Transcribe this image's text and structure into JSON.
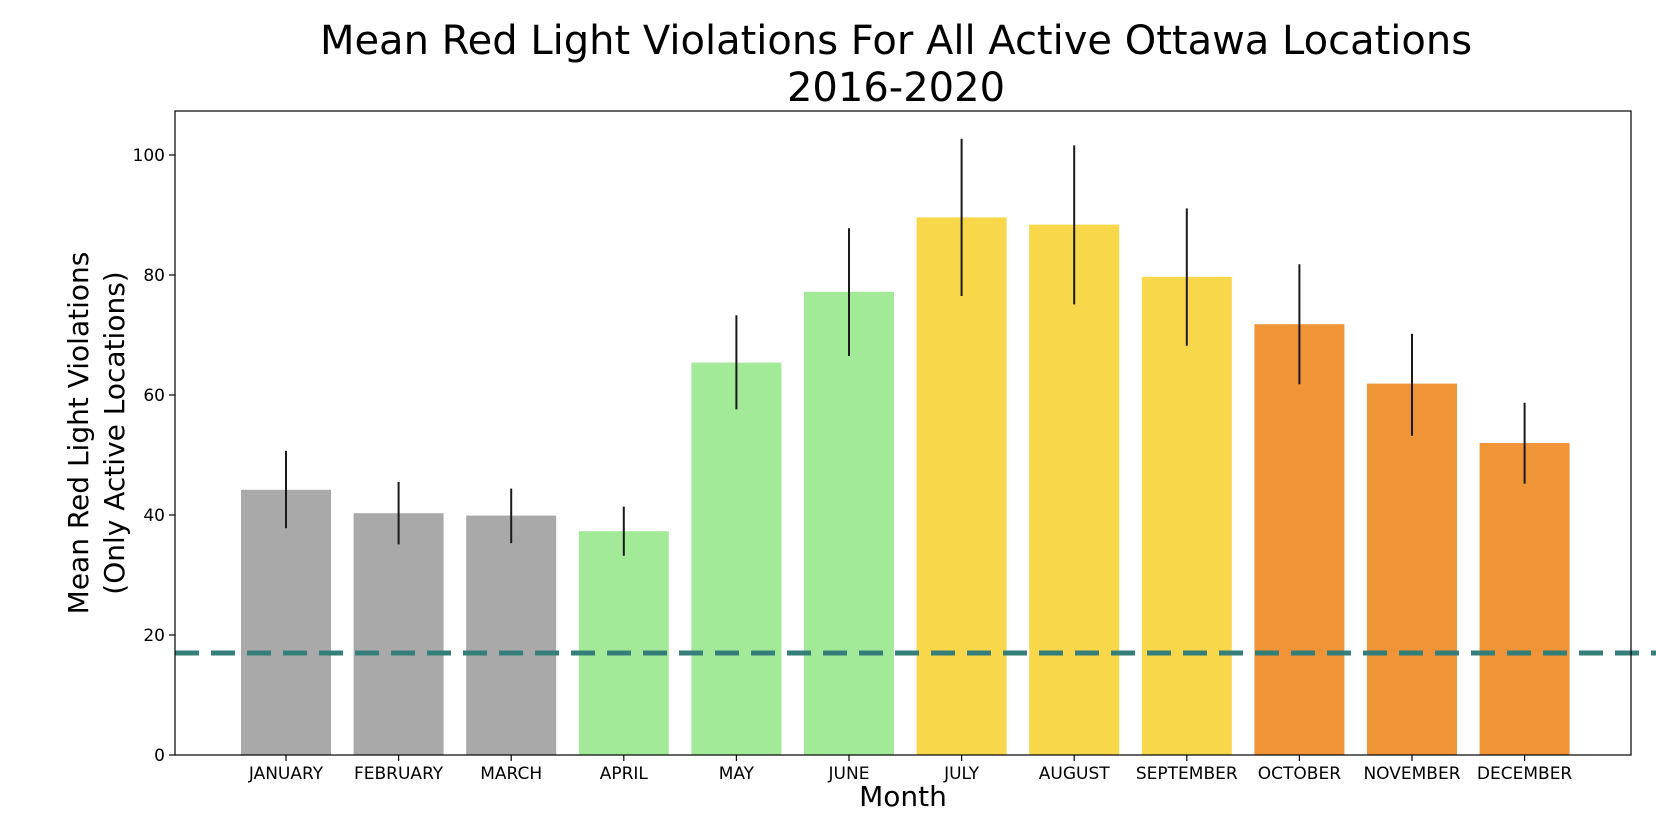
{
  "chart_data": {
    "type": "bar",
    "title": "Mean Red Light Violations For All Active Ottawa Locations",
    "subtitle": "2016-2020",
    "xlabel": "Month",
    "ylabel": "Mean Red Light Violations",
    "ylabel_line2": "(Only Active Locations)",
    "categories": [
      "JANUARY",
      "FEBRUARY",
      "MARCH",
      "APRIL",
      "MAY",
      "JUNE",
      "JULY",
      "AUGUST",
      "SEPTEMBER",
      "OCTOBER",
      "NOVEMBER",
      "DECEMBER"
    ],
    "values": [
      44.2,
      40.3,
      39.9,
      37.3,
      65.4,
      77.2,
      89.6,
      88.4,
      79.7,
      71.8,
      61.9,
      52.0
    ],
    "error_low": [
      37.8,
      35.1,
      35.3,
      33.2,
      57.6,
      66.5,
      76.5,
      75.1,
      68.2,
      61.8,
      53.2,
      45.2
    ],
    "error_high": [
      50.7,
      45.5,
      44.4,
      41.4,
      73.3,
      87.8,
      102.7,
      101.6,
      91.1,
      81.8,
      70.2,
      58.7
    ],
    "bar_colors": [
      "#a9a9a9",
      "#a9a9a9",
      "#a9a9a9",
      "#a3ea98",
      "#a3ea98",
      "#a3ea98",
      "#f8d74a",
      "#f8d74a",
      "#f8d74a",
      "#f09438",
      "#f09438",
      "#f09438"
    ],
    "reference_line": {
      "value": 17.0,
      "color": "#357e7a",
      "style": "dashed"
    },
    "ylim": [
      0,
      108
    ],
    "yticks": [
      0,
      20,
      40,
      60,
      80,
      100
    ],
    "grid": false,
    "legend": "none"
  }
}
